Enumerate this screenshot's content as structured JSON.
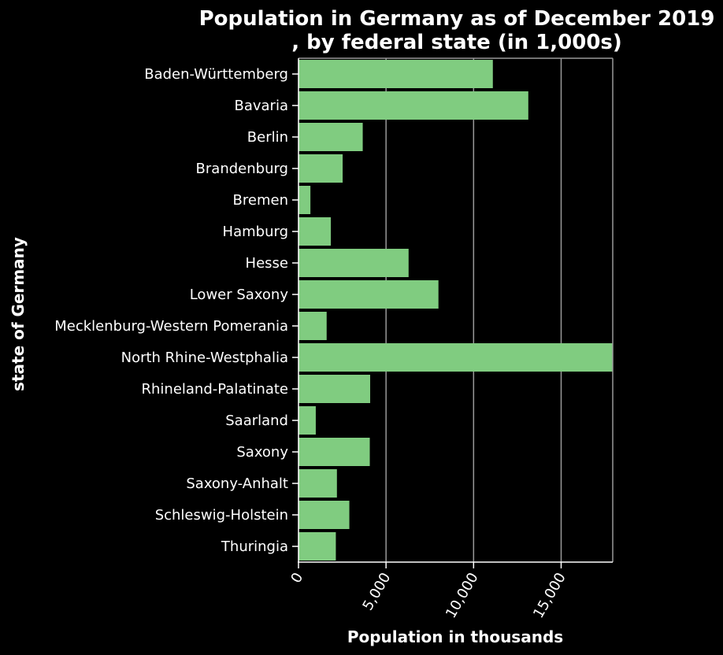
{
  "chart_data": {
    "type": "bar",
    "orientation": "horizontal",
    "title_lines": [
      "Population in Germany as of December 2019",
      ", by federal state (in 1,000s)"
    ],
    "xlabel": "Population in thousands",
    "ylabel": "state of Germany",
    "xlim": [
      0,
      17947
    ],
    "x_ticks": [
      0,
      5000,
      10000,
      15000
    ],
    "x_tick_labels": [
      "0",
      "5,000",
      "10,000",
      "15,000"
    ],
    "grid": "vertical gridlines on",
    "categories": [
      "Baden-Württemberg",
      "Bavaria",
      "Berlin",
      "Brandenburg",
      "Bremen",
      "Hamburg",
      "Hesse",
      "Lower Saxony",
      "Mecklenburg-Western Pomerania",
      "North Rhine-Westphalia",
      "Rhineland-Palatinate",
      "Saarland",
      "Saxony",
      "Saxony-Anhalt",
      "Schleswig-Holstein",
      "Thuringia"
    ],
    "values": [
      11100,
      13125,
      3669,
      2522,
      681,
      1847,
      6288,
      7993,
      1608,
      17947,
      4094,
      987,
      4072,
      2195,
      2904,
      2133
    ]
  },
  "colors": {
    "background": "#000000",
    "bar": "#80cc80",
    "text": "#ffffff",
    "axis": "#ffffff",
    "grid": "#999999"
  }
}
